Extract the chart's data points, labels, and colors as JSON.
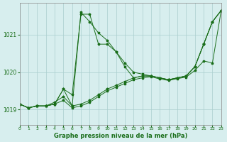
{
  "bg_color": "#d7eeee",
  "line_color": "#1a6e1a",
  "grid_color": "#aacece",
  "title": "Graphe pression niveau de la mer (hPa)",
  "xlim": [
    0,
    23
  ],
  "ylim": [
    1018.6,
    1021.85
  ],
  "yticks": [
    1019,
    1020,
    1021
  ],
  "xticks": [
    0,
    1,
    2,
    3,
    4,
    5,
    6,
    7,
    8,
    9,
    10,
    11,
    12,
    13,
    14,
    15,
    16,
    17,
    18,
    19,
    20,
    21,
    22,
    23
  ],
  "series": [
    {
      "x": [
        0,
        1,
        2,
        3,
        4,
        5,
        6,
        7,
        8,
        9,
        10,
        11,
        12,
        13,
        14,
        15,
        16,
        17,
        18,
        19,
        20,
        21,
        22,
        23
      ],
      "y": [
        1019.15,
        1019.05,
        1019.1,
        1019.1,
        1019.15,
        1019.55,
        1019.1,
        1021.6,
        1021.35,
        1021.05,
        1020.85,
        1020.55,
        1020.15,
        1019.85,
        1019.9,
        1019.9,
        1019.85,
        1019.8,
        1019.85,
        1019.9,
        1020.15,
        1020.75,
        1021.35,
        1021.65
      ]
    },
    {
      "x": [
        0,
        1,
        2,
        3,
        4,
        5,
        6,
        7,
        8,
        9,
        10,
        11,
        12,
        13,
        14,
        15,
        16,
        17,
        18,
        19,
        20,
        21,
        22,
        23
      ],
      "y": [
        1019.15,
        1019.05,
        1019.1,
        1019.1,
        1019.15,
        1019.55,
        1019.4,
        1021.55,
        1021.55,
        1020.75,
        1020.75,
        1020.55,
        1020.25,
        1020.0,
        1019.95,
        1019.9,
        1019.85,
        1019.8,
        1019.85,
        1019.9,
        1020.15,
        1020.75,
        1021.35,
        1021.65
      ]
    },
    {
      "x": [
        0,
        1,
        2,
        3,
        4,
        5,
        6,
        7,
        8,
        9,
        10,
        11,
        12,
        13,
        14,
        15,
        16,
        17,
        18,
        19,
        20,
        21,
        22,
        23
      ],
      "y": [
        1019.15,
        1019.05,
        1019.1,
        1019.1,
        1019.2,
        1019.35,
        1019.1,
        1019.15,
        1019.25,
        1019.4,
        1019.55,
        1019.65,
        1019.75,
        1019.85,
        1019.9,
        1019.9,
        1019.85,
        1019.8,
        1019.85,
        1019.9,
        1020.15,
        1020.75,
        1021.35,
        1021.65
      ]
    },
    {
      "x": [
        0,
        1,
        2,
        3,
        4,
        5,
        6,
        7,
        8,
        9,
        10,
        11,
        12,
        13,
        14,
        15,
        16,
        17,
        18,
        19,
        20,
        21,
        22,
        23
      ],
      "y": [
        1019.15,
        1019.05,
        1019.1,
        1019.1,
        1019.15,
        1019.25,
        1019.05,
        1019.1,
        1019.2,
        1019.35,
        1019.5,
        1019.6,
        1019.7,
        1019.8,
        1019.85,
        1019.88,
        1019.82,
        1019.78,
        1019.83,
        1019.87,
        1020.05,
        1020.3,
        1020.25,
        1021.65
      ]
    }
  ]
}
